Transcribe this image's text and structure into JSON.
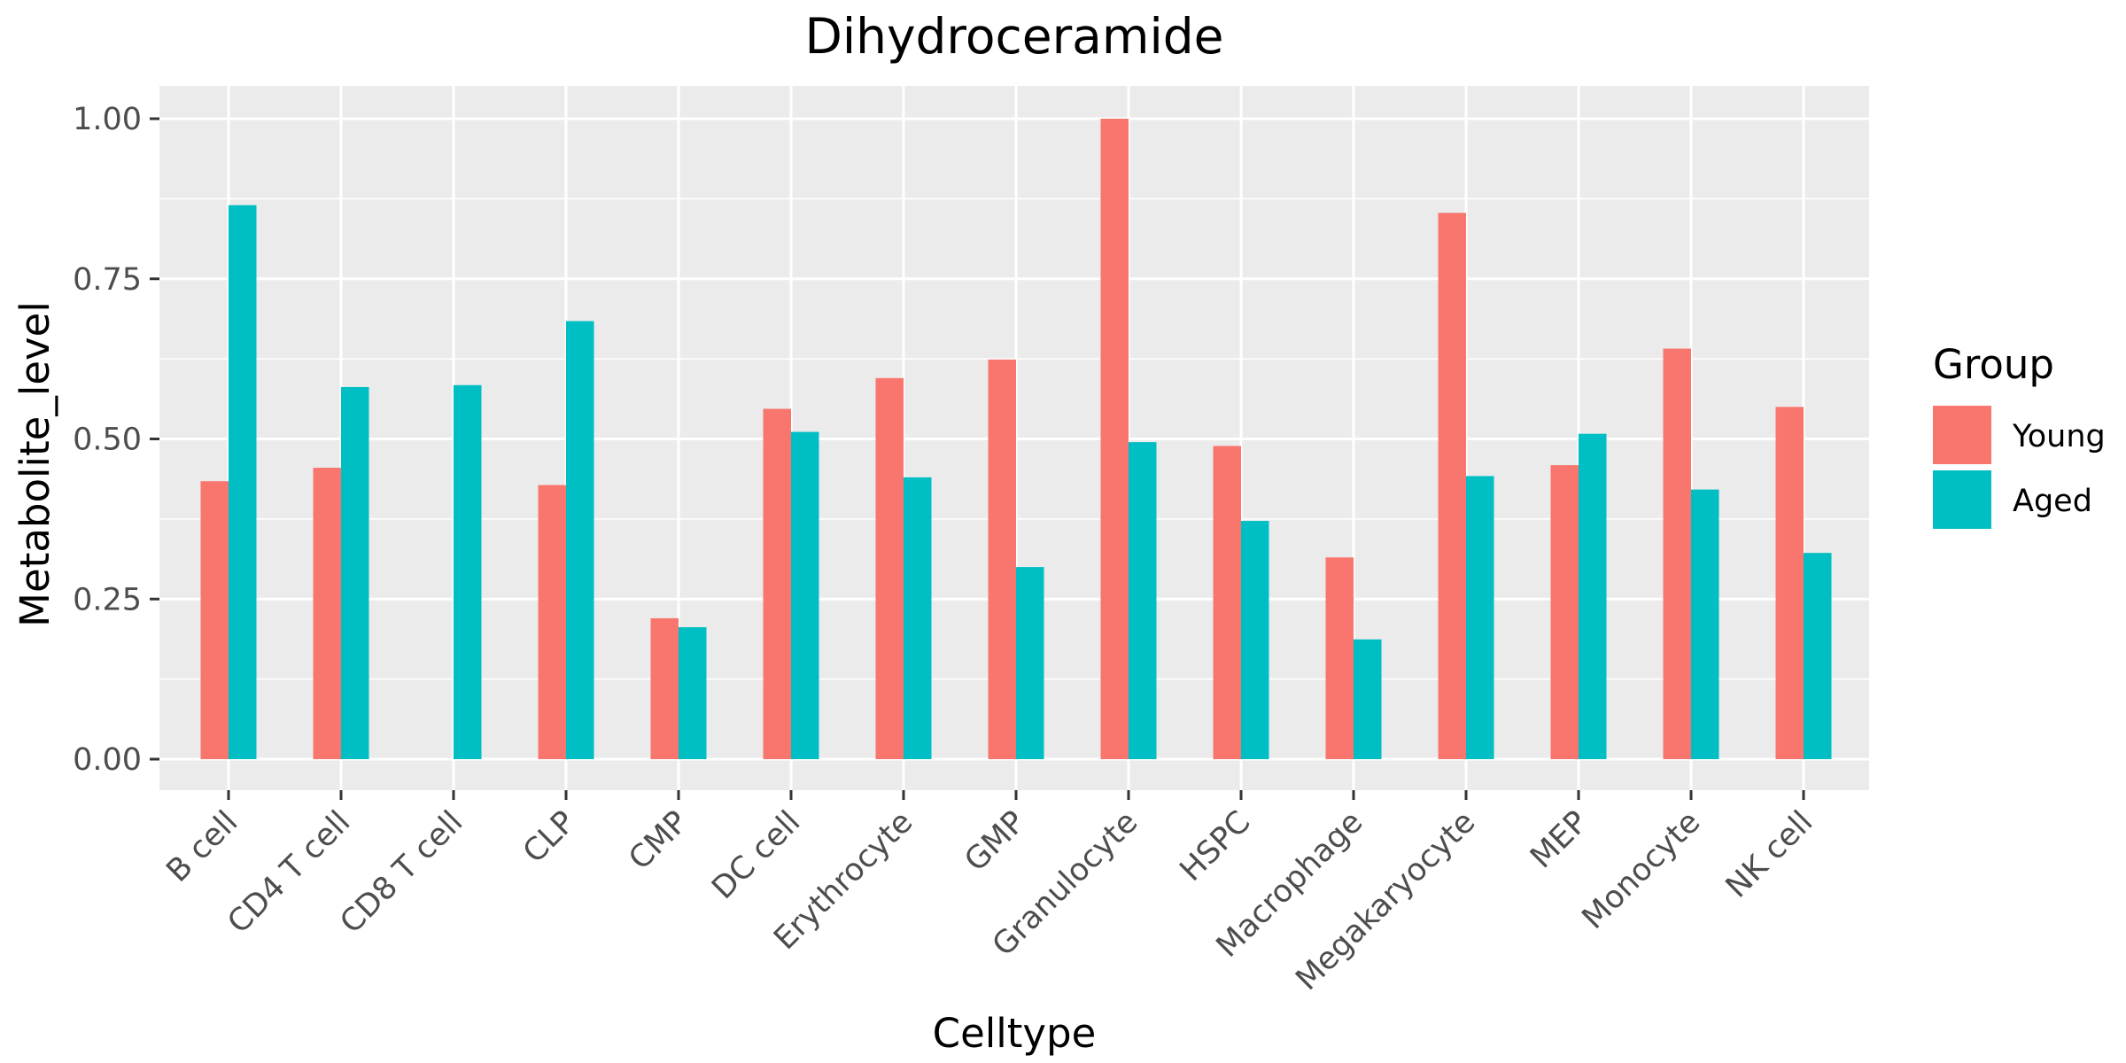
{
  "chart_data": {
    "type": "bar",
    "title": "Dihydroceramide",
    "xlabel": "Celltype",
    "ylabel": "Metabolite_level",
    "ylim": [
      0,
      1.05
    ],
    "yticks": [
      "0.00",
      "0.25",
      "0.50",
      "0.75",
      "1.00"
    ],
    "grid": true,
    "legend": {
      "title": "Group",
      "position": "right"
    },
    "categories": [
      "B cell",
      "CD4 T cell",
      "CD8 T cell",
      "CLP",
      "CMP",
      "DC cell",
      "Erythrocyte",
      "GMP",
      "Granulocyte",
      "HSPC",
      "Macrophage",
      "Megakaryocyte",
      "MEP",
      "Monocyte",
      "NK cell"
    ],
    "series": [
      {
        "name": "Young",
        "color": "#F8766D",
        "values": [
          0.434,
          0.455,
          null,
          0.428,
          0.22,
          0.547,
          0.595,
          0.624,
          1.0,
          0.489,
          0.315,
          0.853,
          0.459,
          0.641,
          0.55
        ]
      },
      {
        "name": "Aged",
        "color": "#00BFC4",
        "values": [
          0.865,
          0.581,
          0.584,
          0.684,
          0.206,
          0.511,
          0.44,
          0.3,
          0.495,
          0.372,
          0.187,
          0.442,
          0.508,
          0.421,
          0.322
        ]
      }
    ]
  }
}
